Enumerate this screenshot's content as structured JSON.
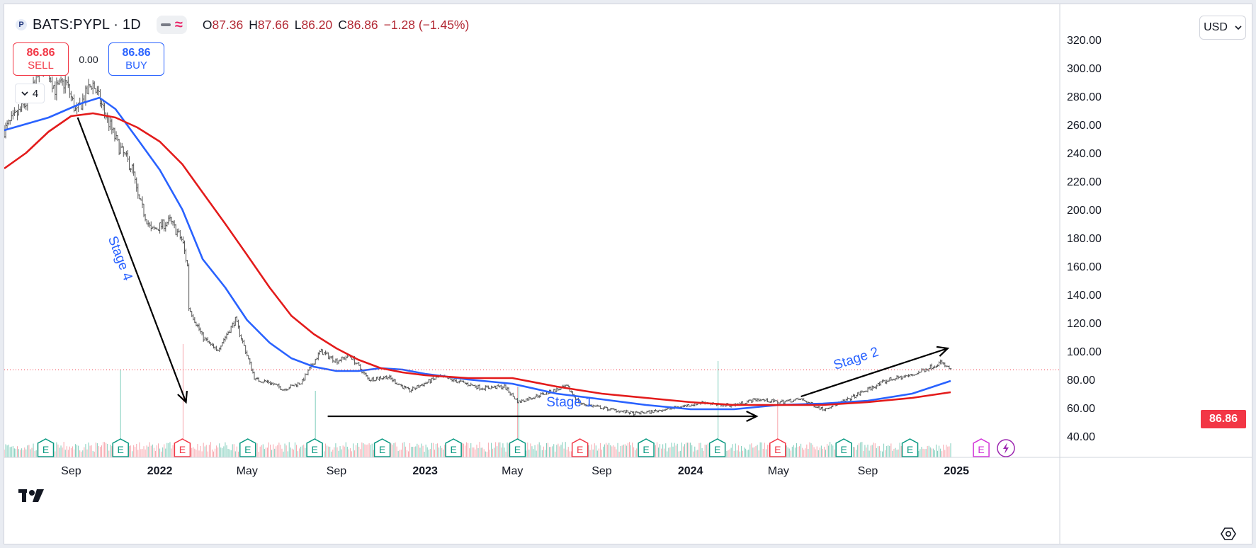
{
  "header": {
    "logo_letter": "P",
    "symbol": "BATS:PYPL · 1D",
    "ohlc": [
      {
        "key": "O",
        "value": "87.36"
      },
      {
        "key": "H",
        "value": "87.66"
      },
      {
        "key": "L",
        "value": "86.20"
      },
      {
        "key": "C",
        "value": "86.86"
      }
    ],
    "change": "−1.28 (−1.45%)"
  },
  "trade": {
    "sell_price": "86.86",
    "sell_label": "SELL",
    "spread": "0.00",
    "buy_price": "86.86",
    "buy_label": "BUY"
  },
  "indicators_collapse": {
    "count": "4"
  },
  "currency": "USD",
  "last_price_label": "86.86",
  "colors": {
    "ma_fast": "#2962ff",
    "ma_slow": "#e31b1b",
    "candles": "#555555",
    "last_price": "#f23645",
    "earnings_green": "#089981",
    "earnings_red": "#f23645",
    "stage_text": "#2962ff",
    "arrows": "#000000"
  },
  "chart_data": {
    "type": "candlestick",
    "x_axis": {
      "ticks": [
        "Sep",
        "2022",
        "May",
        "Sep",
        "2023",
        "May",
        "Sep",
        "2024",
        "May",
        "Sep",
        "2025"
      ]
    },
    "y_axis": {
      "ticks": [
        "320.00",
        "300.00",
        "280.00",
        "260.00",
        "240.00",
        "220.00",
        "200.00",
        "180.00",
        "160.00",
        "140.00",
        "120.00",
        "100.00",
        "80.00",
        "60.00",
        "40.00"
      ],
      "ylim": [
        35,
        323
      ]
    },
    "last_price": 86.86,
    "price_path": [
      [
        "2021-06-01",
        256
      ],
      [
        "2021-07-01",
        275
      ],
      [
        "2021-07-26",
        305
      ],
      [
        "2021-08-10",
        285
      ],
      [
        "2021-08-25",
        290
      ],
      [
        "2021-09-08",
        268
      ],
      [
        "2021-09-30",
        290
      ],
      [
        "2021-10-20",
        265
      ],
      [
        "2021-11-05",
        245
      ],
      [
        "2021-11-25",
        228
      ],
      [
        "2021-12-01",
        210
      ],
      [
        "2021-12-20",
        185
      ],
      [
        "2022-01-15",
        192
      ],
      [
        "2022-02-01",
        178
      ],
      [
        "2022-02-08",
        160
      ],
      [
        "2022-02-09",
        132
      ],
      [
        "2022-03-01",
        110
      ],
      [
        "2022-03-20",
        100
      ],
      [
        "2022-04-15",
        122
      ],
      [
        "2022-05-12",
        80
      ],
      [
        "2022-06-01",
        78
      ],
      [
        "2022-06-20",
        73
      ],
      [
        "2022-07-15",
        78
      ],
      [
        "2022-08-10",
        100
      ],
      [
        "2022-09-01",
        93
      ],
      [
        "2022-09-20",
        97
      ],
      [
        "2022-10-15",
        80
      ],
      [
        "2022-11-10",
        82
      ],
      [
        "2022-12-10",
        72
      ],
      [
        "2023-01-20",
        82
      ],
      [
        "2023-02-20",
        78
      ],
      [
        "2023-03-20",
        74
      ],
      [
        "2023-04-20",
        75
      ],
      [
        "2023-05-09",
        64
      ],
      [
        "2023-06-01",
        68
      ],
      [
        "2023-07-15",
        75
      ],
      [
        "2023-08-02",
        63
      ],
      [
        "2023-09-01",
        60
      ],
      [
        "2023-10-15",
        56
      ],
      [
        "2023-11-05",
        57
      ],
      [
        "2023-12-10",
        60
      ],
      [
        "2024-01-20",
        64
      ],
      [
        "2024-02-07",
        62
      ],
      [
        "2024-03-01",
        62
      ],
      [
        "2024-04-01",
        66
      ],
      [
        "2024-05-01",
        64
      ],
      [
        "2024-06-01",
        66
      ],
      [
        "2024-07-01",
        59
      ],
      [
        "2024-08-01",
        65
      ],
      [
        "2024-09-01",
        73
      ],
      [
        "2024-10-01",
        80
      ],
      [
        "2024-11-01",
        83
      ],
      [
        "2024-12-10",
        92
      ],
      [
        "2024-12-24",
        86.86
      ]
    ],
    "series": [
      {
        "role": "fast_ma",
        "values": [
          [
            "2021-06-01",
            256
          ],
          [
            "2021-08-01",
            265
          ],
          [
            "2021-09-15",
            275
          ],
          [
            "2021-10-10",
            279
          ],
          [
            "2021-11-01",
            271
          ],
          [
            "2021-12-01",
            250
          ],
          [
            "2022-01-01",
            228
          ],
          [
            "2022-02-01",
            200
          ],
          [
            "2022-03-01",
            165
          ],
          [
            "2022-04-01",
            145
          ],
          [
            "2022-05-01",
            122
          ],
          [
            "2022-06-01",
            106
          ],
          [
            "2022-07-01",
            95
          ],
          [
            "2022-08-01",
            89
          ],
          [
            "2022-09-01",
            86
          ],
          [
            "2022-10-01",
            86
          ],
          [
            "2022-11-01",
            88
          ],
          [
            "2022-12-01",
            87
          ],
          [
            "2023-01-01",
            84
          ],
          [
            "2023-03-01",
            80
          ],
          [
            "2023-05-01",
            77
          ],
          [
            "2023-07-01",
            70
          ],
          [
            "2023-09-01",
            66
          ],
          [
            "2023-11-01",
            62
          ],
          [
            "2024-01-01",
            59
          ],
          [
            "2024-03-01",
            59
          ],
          [
            "2024-05-01",
            62
          ],
          [
            "2024-07-01",
            63
          ],
          [
            "2024-09-01",
            65
          ],
          [
            "2024-11-01",
            70
          ],
          [
            "2024-12-24",
            79
          ]
        ]
      },
      {
        "role": "slow_ma",
        "values": [
          [
            "2021-06-01",
            229
          ],
          [
            "2021-07-01",
            240
          ],
          [
            "2021-08-01",
            255
          ],
          [
            "2021-09-01",
            266
          ],
          [
            "2021-10-01",
            268
          ],
          [
            "2021-11-01",
            265
          ],
          [
            "2021-12-01",
            258
          ],
          [
            "2022-01-01",
            248
          ],
          [
            "2022-02-01",
            232
          ],
          [
            "2022-03-01",
            212
          ],
          [
            "2022-04-01",
            190
          ],
          [
            "2022-05-01",
            168
          ],
          [
            "2022-06-01",
            145
          ],
          [
            "2022-07-01",
            125
          ],
          [
            "2022-08-01",
            112
          ],
          [
            "2022-09-01",
            102
          ],
          [
            "2022-10-01",
            94
          ],
          [
            "2022-11-01",
            88
          ],
          [
            "2022-12-01",
            85
          ],
          [
            "2023-01-01",
            83
          ],
          [
            "2023-03-01",
            81
          ],
          [
            "2023-05-01",
            81
          ],
          [
            "2023-07-01",
            75
          ],
          [
            "2023-09-01",
            70
          ],
          [
            "2023-11-01",
            67
          ],
          [
            "2024-01-01",
            64
          ],
          [
            "2024-03-01",
            62
          ],
          [
            "2024-05-01",
            62
          ],
          [
            "2024-07-01",
            62
          ],
          [
            "2024-09-01",
            64
          ],
          [
            "2024-11-01",
            67
          ],
          [
            "2024-12-24",
            71
          ]
        ]
      }
    ],
    "annotations": [
      {
        "text": "Stage 4",
        "from": [
          "2021-09-10",
          265
        ],
        "to": [
          "2022-02-06",
          64
        ]
      },
      {
        "text": "Stage 1",
        "from": [
          "2022-08-20",
          54
        ],
        "to": [
          "2024-04-01",
          54
        ]
      },
      {
        "text": "Stage 2",
        "from": [
          "2024-06-01",
          68
        ],
        "to": [
          "2024-12-20",
          102
        ]
      }
    ],
    "earnings_markers": [
      {
        "date": "2021-07-28",
        "label": "E",
        "kind": "beat"
      },
      {
        "date": "2021-11-08",
        "label": "E",
        "kind": "beat"
      },
      {
        "date": "2022-02-01",
        "label": "E",
        "kind": "miss"
      },
      {
        "date": "2022-05-02",
        "label": "E",
        "kind": "beat"
      },
      {
        "date": "2022-08-02",
        "label": "E",
        "kind": "beat"
      },
      {
        "date": "2022-11-03",
        "label": "E",
        "kind": "beat"
      },
      {
        "date": "2023-02-09",
        "label": "E",
        "kind": "beat"
      },
      {
        "date": "2023-05-08",
        "label": "E",
        "kind": "beat"
      },
      {
        "date": "2023-08-02",
        "label": "E",
        "kind": "miss"
      },
      {
        "date": "2023-11-01",
        "label": "E",
        "kind": "beat"
      },
      {
        "date": "2024-02-07",
        "label": "E",
        "kind": "beat"
      },
      {
        "date": "2024-04-30",
        "label": "E",
        "kind": "miss"
      },
      {
        "date": "2024-07-30",
        "label": "E",
        "kind": "beat"
      },
      {
        "date": "2024-10-29",
        "label": "E",
        "kind": "beat"
      },
      {
        "date": "2025-02-04",
        "label": "E",
        "kind": "upcoming"
      }
    ],
    "volume_spikes": [
      {
        "date": "2021-11-08",
        "rel": 0.7
      },
      {
        "date": "2022-02-02",
        "rel": 1.0
      },
      {
        "date": "2022-08-03",
        "rel": 0.45
      },
      {
        "date": "2023-05-09",
        "rel": 0.5
      },
      {
        "date": "2024-02-08",
        "rel": 0.8
      },
      {
        "date": "2024-04-30",
        "rel": 0.35
      }
    ]
  }
}
